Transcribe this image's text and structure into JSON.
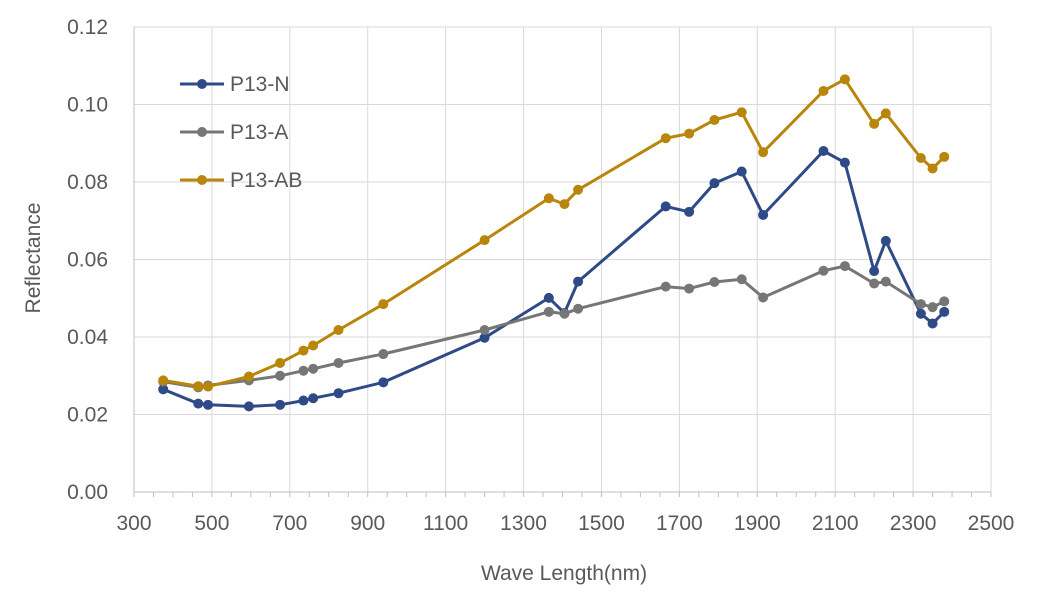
{
  "chart_data": {
    "type": "line",
    "title": "",
    "xlabel": "Wave Length(nm)",
    "ylabel": "Reflectance",
    "xlim": [
      300,
      2500
    ],
    "ylim": [
      0,
      0.12
    ],
    "x_ticks": [
      "300",
      "500",
      "700",
      "900",
      "1100",
      "1300",
      "1500",
      "1700",
      "1900",
      "2100",
      "2300",
      "2500"
    ],
    "y_ticks": [
      "0.00",
      "0.02",
      "0.04",
      "0.06",
      "0.08",
      "0.10",
      "0.12"
    ],
    "x_tick_values": [
      300,
      500,
      700,
      900,
      1100,
      1300,
      1500,
      1700,
      1900,
      2100,
      2300,
      2500
    ],
    "y_tick_values": [
      0,
      0.02,
      0.04,
      0.06,
      0.08,
      0.1,
      0.12
    ],
    "grid": true,
    "legend_position": "top-left",
    "x": [
      375,
      465,
      490,
      595,
      675,
      735,
      760,
      825,
      940,
      1200,
      1365,
      1405,
      1440,
      1665,
      1725,
      1790,
      1860,
      1915,
      2070,
      2125,
      2200,
      2230,
      2320,
      2350,
      2380
    ],
    "series": [
      {
        "name": "P13-N",
        "color": "#2e4a87",
        "values": [
          0.0265,
          0.0228,
          0.0225,
          0.0221,
          0.0225,
          0.0236,
          0.0242,
          0.0255,
          0.0283,
          0.0398,
          0.0501,
          0.0462,
          0.0543,
          0.0737,
          0.0723,
          0.0797,
          0.0827,
          0.0715,
          0.088,
          0.085,
          0.057,
          0.0648,
          0.046,
          0.0435,
          0.0465
        ]
      },
      {
        "name": "P13-A",
        "color": "#767676",
        "values": [
          0.0285,
          0.027,
          0.0275,
          0.0288,
          0.03,
          0.0313,
          0.0318,
          0.0333,
          0.0356,
          0.0418,
          0.0465,
          0.046,
          0.0473,
          0.053,
          0.0525,
          0.0542,
          0.0549,
          0.0502,
          0.0571,
          0.0583,
          0.0538,
          0.0543,
          0.0485,
          0.0477,
          0.0492
        ]
      },
      {
        "name": "P13-AB",
        "color": "#b8860b",
        "values": [
          0.0288,
          0.0273,
          0.0272,
          0.0298,
          0.0333,
          0.0365,
          0.0378,
          0.0418,
          0.0485,
          0.065,
          0.0758,
          0.0743,
          0.078,
          0.0913,
          0.0925,
          0.096,
          0.098,
          0.0877,
          0.1035,
          0.1065,
          0.095,
          0.0977,
          0.0862,
          0.0835,
          0.0865
        ]
      }
    ]
  }
}
